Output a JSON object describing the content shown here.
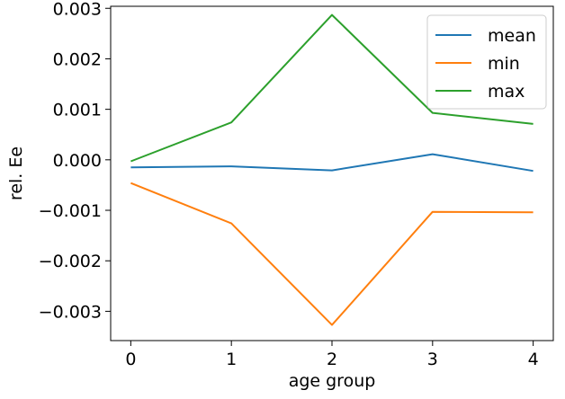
{
  "chart_data": {
    "type": "line",
    "xlabel": "age group",
    "ylabel": "rel. Ee",
    "x": [
      0,
      1,
      2,
      3,
      4
    ],
    "xticks": [
      "0",
      "1",
      "2",
      "3",
      "4"
    ],
    "xlim": [
      -0.2,
      4.2
    ],
    "yticks": [
      -0.003,
      -0.002,
      -0.001,
      0.0,
      0.001,
      0.002,
      0.003
    ],
    "ytick_labels": [
      "−0.003",
      "−0.002",
      "−0.001",
      "0.000",
      "0.001",
      "0.002",
      "0.003"
    ],
    "ylim": [
      -0.00358,
      0.00304
    ],
    "grid": false,
    "legend_position": "top-right",
    "series": [
      {
        "name": "mean",
        "color": "#1f77b4",
        "values": [
          -0.00015,
          -0.00013,
          -0.00021,
          0.00011,
          -0.00022
        ]
      },
      {
        "name": "min",
        "color": "#ff7f0e",
        "values": [
          -0.00046,
          -0.00126,
          -0.00327,
          -0.00103,
          -0.00104
        ]
      },
      {
        "name": "max",
        "color": "#2ca02c",
        "values": [
          -3e-05,
          0.00074,
          0.00287,
          0.00093,
          0.00071
        ]
      }
    ]
  }
}
